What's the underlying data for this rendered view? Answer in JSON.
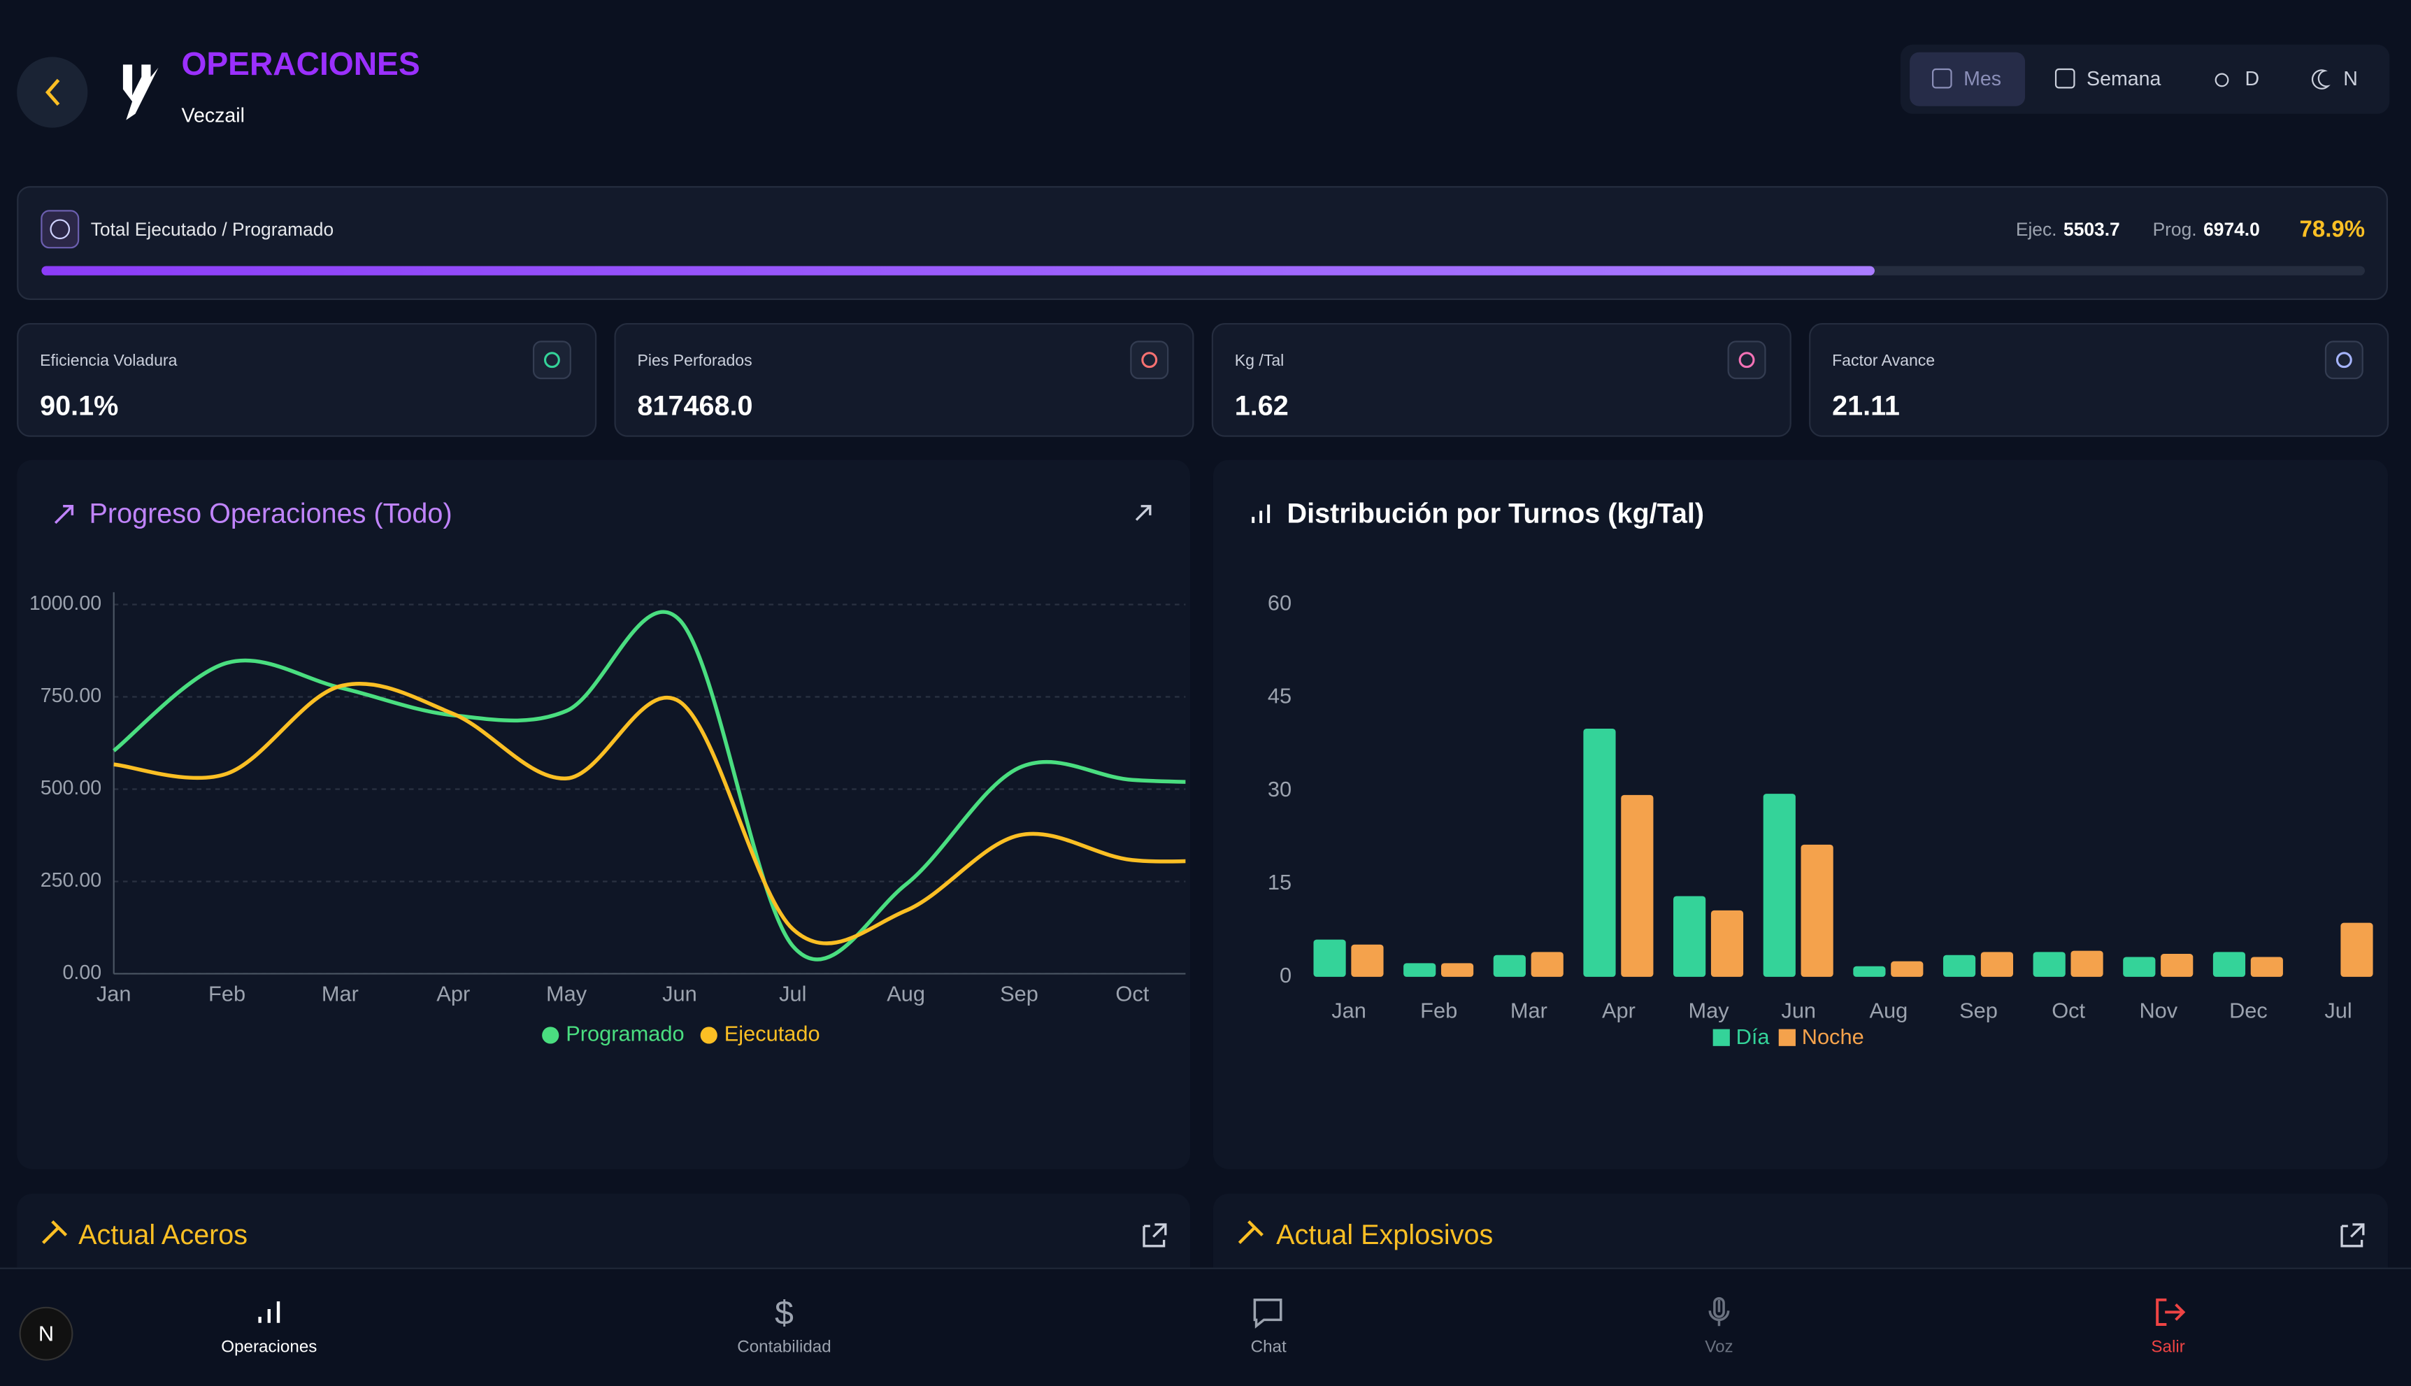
{
  "header": {
    "title": "OPERACIONES",
    "subtitle": "Veczail"
  },
  "toggles": [
    "Mes",
    "Semana",
    "D",
    "N"
  ],
  "progress": {
    "label": "Total Ejecutado / Programado",
    "ejec_label": "Ejec.",
    "ejec": "5503.7",
    "prog_label": "Prog.",
    "prog": "6974.0",
    "percent": 78.9,
    "percent_label": "78.9%"
  },
  "kpis": [
    {
      "label": "Eficiencia Voladura",
      "value": "90.1%"
    },
    {
      "label": "Pies Perforados",
      "value": "817468.0"
    },
    {
      "label": "Kg /Tal",
      "value": "1.62"
    },
    {
      "label": "Factor Avance",
      "value": "21.11"
    }
  ],
  "sections": [
    "Actual Aceros",
    "Actual Explosivos"
  ],
  "avatar": "N",
  "nav": [
    "Operaciones",
    "Contabilidad",
    "Chat",
    "Voz",
    "Salir"
  ],
  "chart_data": [
    {
      "type": "line",
      "title": "Progreso Operaciones (Todo)",
      "categories": [
        "Jan",
        "Feb",
        "Mar",
        "Apr",
        "May",
        "Jun",
        "Jul",
        "Aug",
        "Sep",
        "Oct",
        null
      ],
      "series": [
        {
          "name": "Programado",
          "color": "#4ade80",
          "values": [
            604,
            842,
            775,
            700,
            712,
            958,
            75,
            242,
            558,
            525,
            517
          ]
        },
        {
          "name": "Ejecutado",
          "color": "#fbbf24",
          "values": [
            567,
            542,
            779,
            704,
            529,
            737,
            121,
            171,
            375,
            308,
            312
          ]
        }
      ],
      "ylim": [
        0,
        1000
      ],
      "yticks": [
        {
          "value": 0,
          "label": "0.00"
        },
        {
          "value": 250,
          "label": "250.00"
        },
        {
          "value": 500,
          "label": "500.00"
        },
        {
          "value": 750,
          "label": "750.00"
        },
        {
          "value": 1000,
          "label": "1000.00"
        }
      ],
      "grid": true,
      "legend": "bottom"
    },
    {
      "type": "bar",
      "title": "Distribución por Turnos (kg/Tal)",
      "categories": [
        "Jan",
        "Feb",
        "Mar",
        "Apr",
        "May",
        "Jun",
        "Aug",
        "Sep",
        "Oct",
        "Nov",
        "Dec",
        "Jul"
      ],
      "series": [
        {
          "name": "Día",
          "color": "#34d399",
          "values": [
            6,
            2.2,
            3.5,
            40,
            13,
            29.5,
            1.7,
            3.5,
            4,
            3.2,
            4,
            null
          ]
        },
        {
          "name": "Noche",
          "color": "#f4a24c",
          "values": [
            5.2,
            2.2,
            4,
            29.3,
            10.7,
            21.3,
            2.5,
            4,
            4.2,
            3.7,
            3.2,
            8.7
          ]
        }
      ],
      "ylim": [
        0,
        60
      ],
      "yticks": [
        0,
        15,
        30,
        45,
        60
      ],
      "grid": false,
      "legend": "bottom"
    }
  ]
}
